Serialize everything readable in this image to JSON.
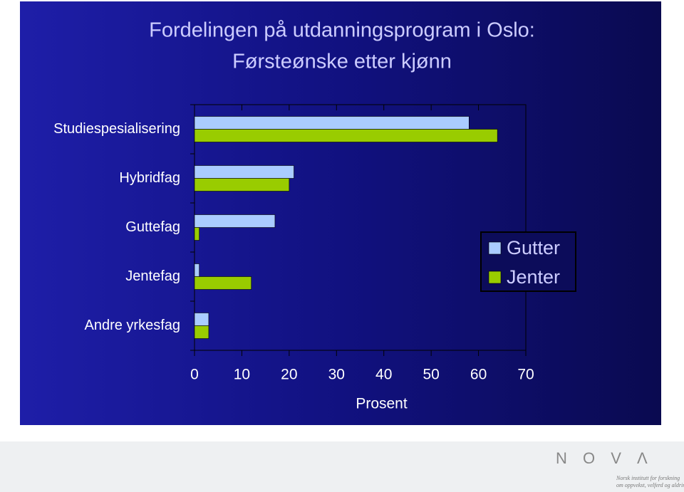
{
  "chart_data": {
    "type": "hbar",
    "title": "Fordelingen på utdanningsprogram i Oslo:",
    "subtitle": "Førsteønske etter kjønn",
    "categories": [
      "Studiespesialisering",
      "Hybridfag",
      "Guttefag",
      "Jentefag",
      "Andre yrkesfag"
    ],
    "series": [
      {
        "name": "Gutter",
        "color": "#aaccff",
        "values": [
          58,
          21,
          17,
          1,
          3
        ]
      },
      {
        "name": "Jenter",
        "color": "#99cc00",
        "values": [
          64,
          20,
          1,
          12,
          3
        ]
      }
    ],
    "xlabel": "Prosent",
    "xlim": [
      0,
      70
    ],
    "xticks": [
      0,
      10,
      20,
      30,
      40,
      50,
      60,
      70
    ],
    "legend": "right"
  },
  "footer": {
    "logo": "N O V Λ",
    "institute": [
      "Norsk institutt for forskning",
      "om oppvekst, velferd og aldring"
    ]
  }
}
